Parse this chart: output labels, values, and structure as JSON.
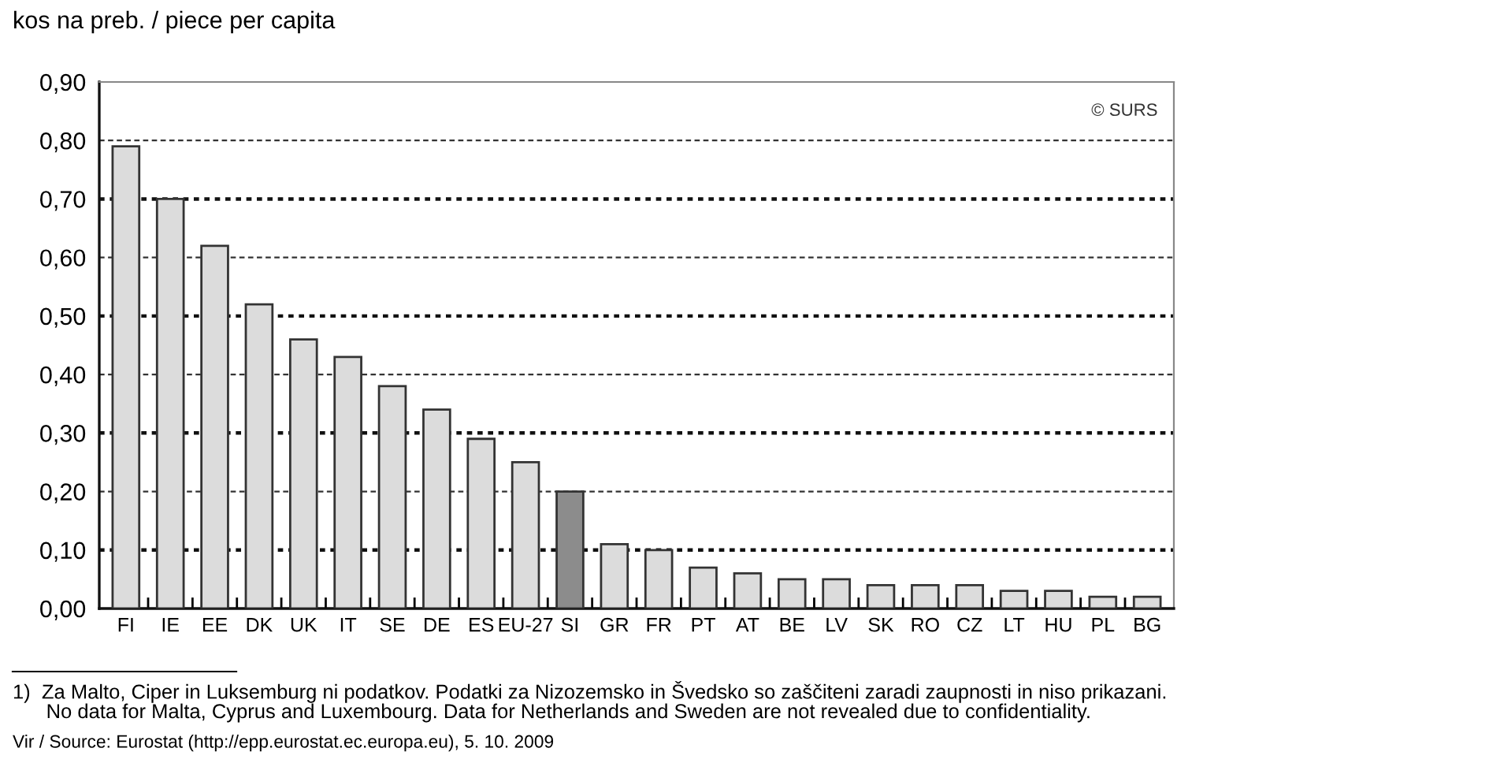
{
  "chart_data": {
    "type": "bar",
    "title": "kos na preb. / piece per capita",
    "categories": [
      "FI",
      "IE",
      "EE",
      "DK",
      "UK",
      "IT",
      "SE",
      "DE",
      "ES",
      "EU-27",
      "SI",
      "GR",
      "FR",
      "PT",
      "AT",
      "BE",
      "LV",
      "SK",
      "RO",
      "CZ",
      "LT",
      "HU",
      "PL",
      "BG"
    ],
    "values": [
      0.79,
      0.7,
      0.62,
      0.52,
      0.46,
      0.43,
      0.38,
      0.34,
      0.29,
      0.25,
      0.2,
      0.11,
      0.1,
      0.07,
      0.06,
      0.05,
      0.05,
      0.04,
      0.04,
      0.04,
      0.03,
      0.03,
      0.02,
      0.02
    ],
    "colors": [
      "#dcdcdc",
      "#dcdcdc",
      "#dcdcdc",
      "#dcdcdc",
      "#dcdcdc",
      "#dcdcdc",
      "#dcdcdc",
      "#dcdcdc",
      "#dcdcdc",
      "#dcdcdc",
      "#8c8c8c",
      "#dcdcdc",
      "#dcdcdc",
      "#dcdcdc",
      "#dcdcdc",
      "#dcdcdc",
      "#dcdcdc",
      "#dcdcdc",
      "#dcdcdc",
      "#dcdcdc",
      "#dcdcdc",
      "#dcdcdc",
      "#dcdcdc",
      "#dcdcdc"
    ],
    "ylim": [
      0,
      0.9
    ],
    "yticks": [
      {
        "value": 0,
        "label": "0,00"
      },
      {
        "value": 0.1,
        "label": "0,10"
      },
      {
        "value": 0.2,
        "label": "0,20"
      },
      {
        "value": 0.3,
        "label": "0,30"
      },
      {
        "value": 0.4,
        "label": "0,40"
      },
      {
        "value": 0.5,
        "label": "0,50"
      },
      {
        "value": 0.6,
        "label": "0,60"
      },
      {
        "value": 0.7,
        "label": "0,70"
      },
      {
        "value": 0.8,
        "label": "0,80"
      },
      {
        "value": 0.9,
        "label": "0,90"
      }
    ],
    "grid": "y",
    "annotations": [
      "© SURS",
      "1)  Za Malto, Ciper in Luksemburg ni podatkov. Podatki za Nizozemsko in Švedsko so zaščiteni zaradi zaupnosti in niso prikazani.\n      No data for Malta, Cyprus and Luxembourg. Data for Netherlands and Sweden are not revealed due to confidentiality.",
      "Vir / Source: Eurostat (http://epp.eurostat.ec.europa.eu), 5. 10. 2009"
    ]
  }
}
